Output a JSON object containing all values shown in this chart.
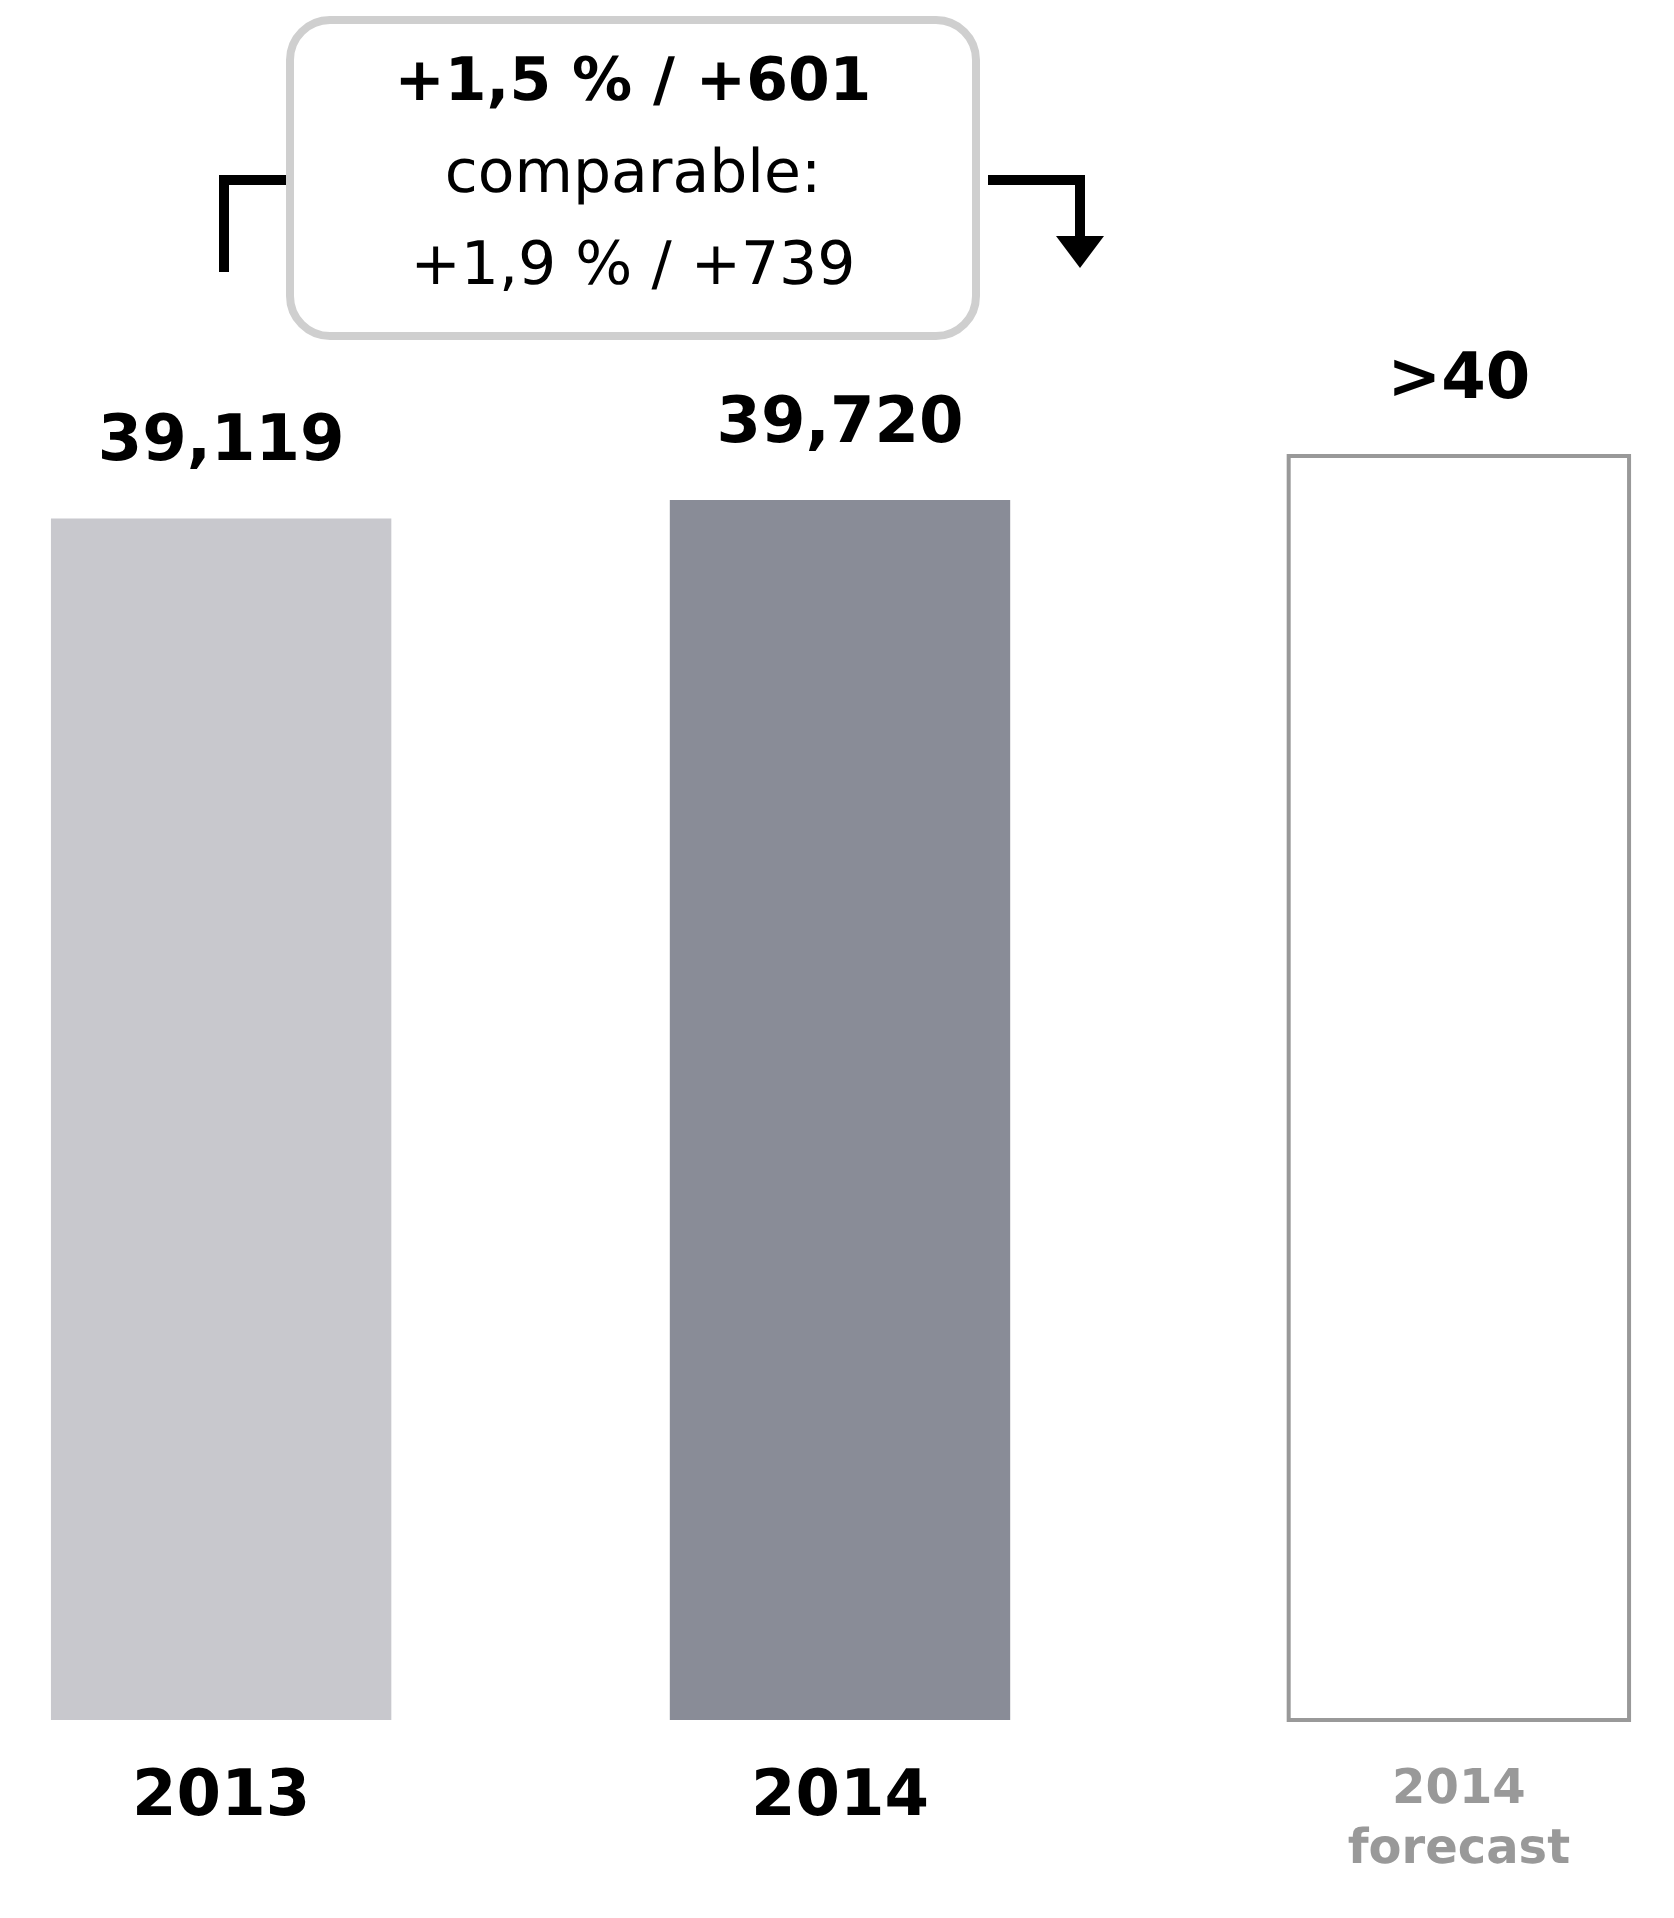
{
  "chart_data": {
    "type": "bar",
    "categories": [
      "2013",
      "2014",
      "2014\nforecast"
    ],
    "values": [
      39119,
      39720,
      41150
    ],
    "colors": [
      "#c8c8cd",
      "#898c97",
      "#ffffff"
    ],
    "value_labels": [
      "39,119",
      "39,720",
      ">40"
    ],
    "annotations": [
      "+1,5 % / +601",
      "comparable:",
      "+1,9 % / +739"
    ]
  }
}
